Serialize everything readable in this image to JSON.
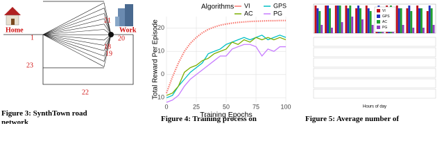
{
  "figure3": {
    "caption_lines": [
      "Figure 3: SynthTown road",
      "network"
    ],
    "labels": {
      "home": "Home",
      "work": "Work",
      "n1": "1",
      "n20": "20",
      "n21": "21",
      "n22": "22",
      "n23": "23",
      "n18": "18",
      "n19": "19"
    }
  },
  "chart_data": {
    "type": "line",
    "caption": "Figure 4: Training process on",
    "legend_title": "Algorithms",
    "xlabel": "Training Epochs",
    "ylabel": "Total Reward Per Episode",
    "x": [
      0,
      5,
      10,
      15,
      20,
      25,
      30,
      35,
      40,
      45,
      50,
      55,
      60,
      65,
      70,
      75,
      80,
      85,
      90,
      95,
      100
    ],
    "xlim": [
      0,
      100
    ],
    "xticks": [
      0,
      25,
      50,
      75,
      100
    ],
    "ylim": [
      -12,
      25
    ],
    "yticks": [
      -10,
      0,
      10,
      20
    ],
    "grid": true,
    "series": [
      {
        "name": "VI",
        "color": "#f8766d",
        "dotted": true,
        "values": [
          -8,
          -1,
          5,
          10,
          13.5,
          16,
          18,
          19.5,
          20.5,
          21.3,
          21.8,
          22.2,
          22.5,
          22.7,
          22.9,
          23,
          23.1,
          23.2,
          23.2,
          23.3,
          23.3
        ]
      },
      {
        "name": "GPS",
        "color": "#00bfc4",
        "values": [
          -10,
          -9,
          -5,
          -2,
          1,
          3,
          5,
          9,
          10,
          11,
          13,
          14,
          15,
          16,
          15,
          16,
          17,
          15,
          16,
          17,
          16
        ]
      },
      {
        "name": "AC",
        "color": "#7cae00",
        "values": [
          -9,
          -8,
          -5,
          1,
          3,
          4,
          6,
          7,
          9,
          10,
          11,
          14,
          13,
          15,
          14,
          16,
          15,
          16,
          15,
          16,
          15
        ]
      },
      {
        "name": "PG",
        "color": "#c77cff",
        "values": [
          -12,
          -11,
          -9,
          -5,
          -2,
          0,
          2,
          4,
          6,
          8,
          8,
          11,
          12,
          13,
          13,
          12,
          8,
          11,
          10,
          12,
          12
        ]
      }
    ]
  },
  "figure5": {
    "caption": "Figure 5: Average number of",
    "xlabel": "Hours of day",
    "series": [
      {
        "name": "VI",
        "color": "#c0101a",
        "values": [
          10,
          10,
          10,
          10,
          9,
          10,
          9,
          10,
          10,
          9,
          10,
          8
        ]
      },
      {
        "name": "GPS",
        "color": "#2030c0",
        "values": [
          9,
          10,
          10,
          9,
          10,
          9,
          10,
          8,
          9,
          10,
          9,
          10
        ]
      },
      {
        "name": "AC",
        "color": "#20a030",
        "values": [
          8,
          9,
          10,
          10,
          9,
          8,
          9,
          10,
          9,
          8,
          9,
          9
        ]
      },
      {
        "name": "PG",
        "color": "#9040c0",
        "values": [
          3,
          2,
          4,
          6,
          5,
          3,
          2,
          4,
          3,
          2,
          2,
          3
        ]
      }
    ]
  }
}
